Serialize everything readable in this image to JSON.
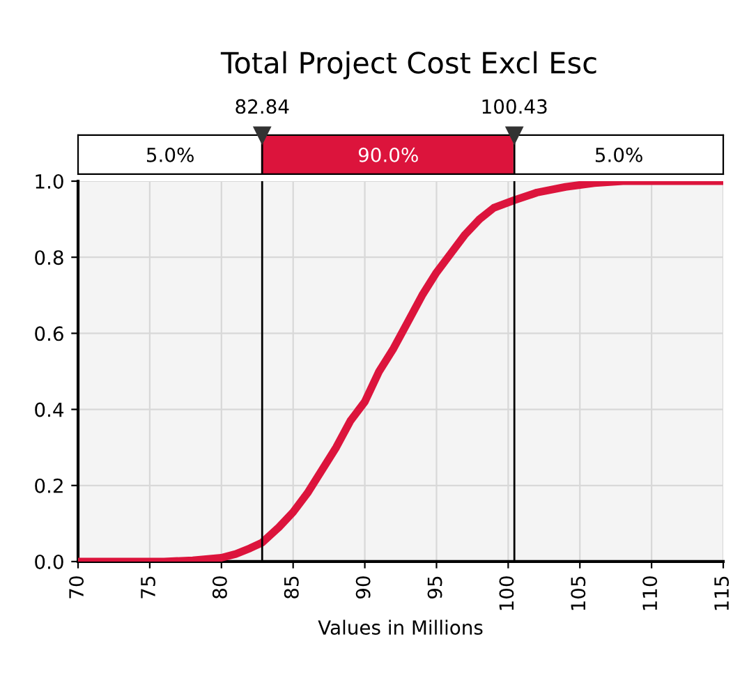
{
  "chart_data": {
    "type": "line",
    "title": "Total Project Cost Excl Esc",
    "xlabel": "Values in Millions",
    "x": [
      70,
      76,
      78,
      80,
      81,
      82,
      82.84,
      84,
      85,
      86,
      87,
      88,
      89,
      90,
      91,
      92,
      93,
      94,
      95,
      96,
      97,
      98,
      99,
      100.43,
      102,
      104,
      106,
      108,
      115
    ],
    "series": [
      {
        "color": "#dc143c",
        "values": [
          0,
          0,
          0.003,
          0.01,
          0.02,
          0.035,
          0.05,
          0.09,
          0.13,
          0.18,
          0.24,
          0.3,
          0.37,
          0.42,
          0.5,
          0.56,
          0.63,
          0.7,
          0.76,
          0.81,
          0.86,
          0.9,
          0.93,
          0.95,
          0.97,
          0.985,
          0.995,
          1,
          1
        ]
      }
    ],
    "xlim": [
      70,
      115
    ],
    "xticks": [
      70,
      75,
      80,
      85,
      90,
      95,
      100,
      105,
      110,
      115
    ],
    "ylim": [
      0,
      1
    ],
    "yticks": [
      {
        "value": 0,
        "label": "0.0"
      },
      {
        "value": 0.2,
        "label": "0.2"
      },
      {
        "value": 0.4,
        "label": "0.4"
      },
      {
        "value": 0.6,
        "label": "0.6"
      },
      {
        "value": 0.8,
        "label": "0.8"
      },
      {
        "value": 1,
        "label": "1.0"
      }
    ],
    "ref_lines": [
      {
        "axis": "x",
        "value": 82.84,
        "label": "82.84",
        "color": "#000000"
      },
      {
        "axis": "x",
        "value": 100.43,
        "label": "100.43",
        "color": "#000000"
      }
    ],
    "annotations": [
      "5.0%",
      "90.0%",
      "5.0%"
    ],
    "grid": true,
    "marker": "none",
    "line_style": "solid"
  }
}
